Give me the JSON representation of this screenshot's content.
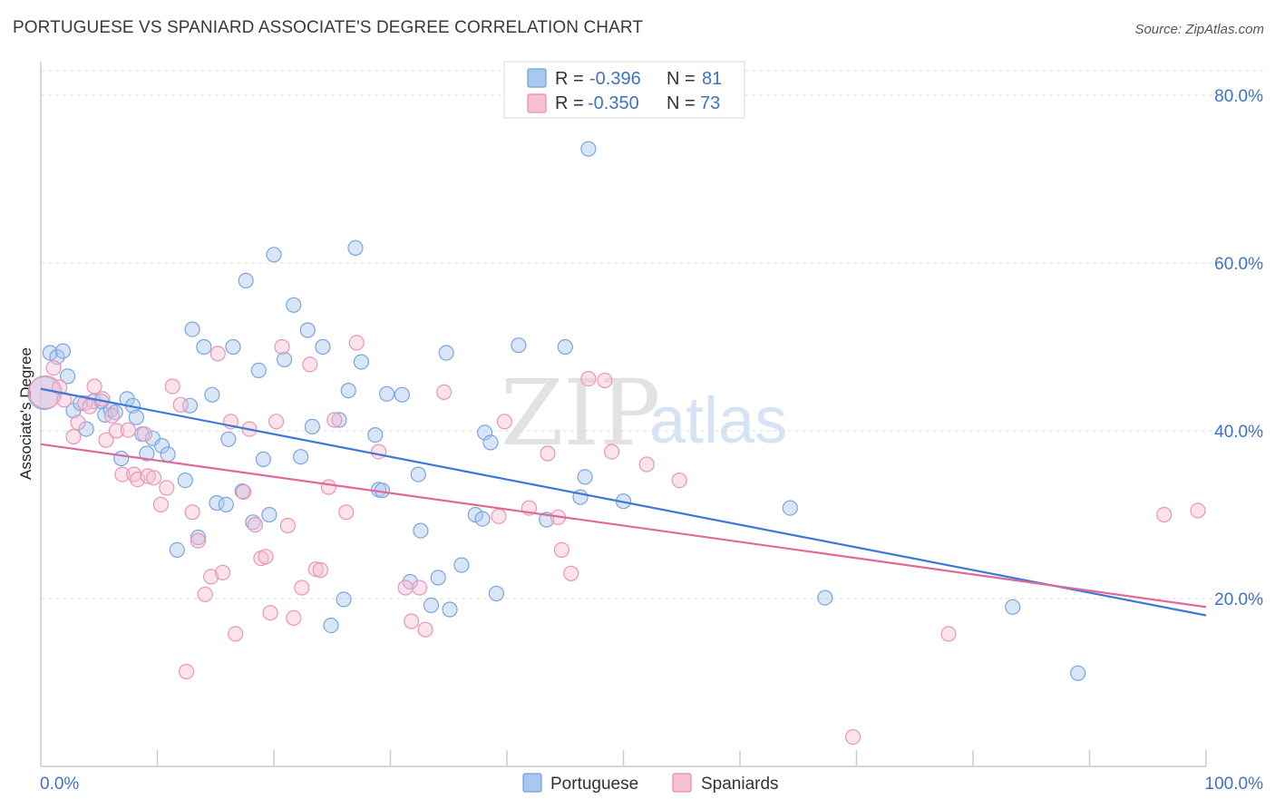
{
  "header": {
    "title": "PORTUGUESE VS SPANIARD ASSOCIATE'S DEGREE CORRELATION CHART",
    "source": "Source: ZipAtlas.com"
  },
  "watermark": {
    "zip": "ZIP",
    "atlas": "atlas"
  },
  "legend": {
    "r_label": "R =",
    "n_label": "N =",
    "entries": [
      {
        "name": "Portuguese",
        "r": "-0.396",
        "n": "81",
        "fill": "#a9c8f0",
        "stroke": "#6f9ee0"
      },
      {
        "name": "Spaniards",
        "r": "-0.350",
        "n": "73",
        "fill": "#f7bfd2",
        "stroke": "#e88aaa"
      }
    ]
  },
  "chart_data": {
    "type": "scatter",
    "title": "PORTUGUESE VS SPANIARD ASSOCIATE'S DEGREE CORRELATION CHART",
    "xlabel": "",
    "ylabel": "Associate's Degree",
    "xlim": [
      0,
      100
    ],
    "ylim": [
      0,
      84
    ],
    "x_tick_labels": [
      "0.0%",
      "100.0%"
    ],
    "y_ticks": [
      20,
      40,
      60,
      80
    ],
    "y_tick_labels": [
      "20.0%",
      "40.0%",
      "60.0%",
      "80.0%"
    ],
    "grid": "horizontal dashed",
    "legend_placement": "top-center",
    "colors": {
      "portuguese": "#3b78d8",
      "spaniards": "#e0699a"
    },
    "series": [
      {
        "name": "Portuguese",
        "trend": {
          "x": [
            0,
            100
          ],
          "y": [
            45.0,
            18.0
          ]
        },
        "points": [
          [
            0.3,
            44.5
          ],
          [
            0.8,
            49.3
          ],
          [
            1.4,
            48.8
          ],
          [
            1.9,
            49.5
          ],
          [
            2.3,
            46.5
          ],
          [
            2.8,
            42.4
          ],
          [
            3.4,
            43.3
          ],
          [
            3.9,
            40.2
          ],
          [
            4.5,
            43.5
          ],
          [
            5.2,
            43.5
          ],
          [
            5.5,
            41.9
          ],
          [
            6.0,
            42.5
          ],
          [
            6.4,
            42.2
          ],
          [
            6.9,
            36.7
          ],
          [
            7.4,
            43.8
          ],
          [
            7.9,
            43.0
          ],
          [
            8.2,
            41.6
          ],
          [
            8.7,
            39.6
          ],
          [
            9.1,
            37.3
          ],
          [
            9.6,
            39.1
          ],
          [
            10.4,
            38.2
          ],
          [
            10.9,
            37.2
          ],
          [
            11.7,
            25.8
          ],
          [
            12.4,
            34.1
          ],
          [
            12.8,
            43.0
          ],
          [
            13.0,
            52.1
          ],
          [
            13.5,
            27.3
          ],
          [
            14.0,
            50.0
          ],
          [
            14.7,
            44.3
          ],
          [
            15.1,
            31.4
          ],
          [
            15.9,
            31.2
          ],
          [
            16.1,
            39.0
          ],
          [
            16.5,
            50.0
          ],
          [
            17.3,
            32.8
          ],
          [
            17.6,
            57.9
          ],
          [
            18.2,
            29.1
          ],
          [
            18.7,
            47.2
          ],
          [
            19.1,
            36.6
          ],
          [
            19.6,
            30.0
          ],
          [
            20.0,
            61.0
          ],
          [
            20.9,
            48.5
          ],
          [
            21.7,
            55.0
          ],
          [
            22.3,
            36.9
          ],
          [
            22.9,
            52.0
          ],
          [
            23.3,
            40.5
          ],
          [
            24.2,
            50.0
          ],
          [
            24.9,
            16.8
          ],
          [
            25.6,
            41.3
          ],
          [
            26.0,
            19.9
          ],
          [
            26.4,
            44.8
          ],
          [
            27.0,
            61.8
          ],
          [
            27.5,
            48.2
          ],
          [
            28.7,
            39.5
          ],
          [
            29.0,
            33.0
          ],
          [
            29.3,
            32.9
          ],
          [
            29.7,
            44.4
          ],
          [
            31.0,
            44.3
          ],
          [
            31.7,
            22.0
          ],
          [
            32.4,
            34.8
          ],
          [
            32.6,
            28.1
          ],
          [
            33.5,
            19.2
          ],
          [
            34.1,
            22.5
          ],
          [
            34.8,
            49.3
          ],
          [
            35.1,
            18.7
          ],
          [
            36.1,
            24.0
          ],
          [
            37.3,
            30.0
          ],
          [
            37.9,
            29.5
          ],
          [
            38.1,
            39.8
          ],
          [
            38.6,
            38.6
          ],
          [
            39.1,
            20.6
          ],
          [
            41.0,
            50.2
          ],
          [
            43.4,
            29.4
          ],
          [
            45.0,
            50.0
          ],
          [
            46.3,
            32.1
          ],
          [
            46.7,
            34.5
          ],
          [
            47.0,
            73.6
          ],
          [
            50.0,
            31.6
          ],
          [
            64.3,
            30.8
          ],
          [
            67.3,
            20.1
          ],
          [
            83.4,
            19.0
          ],
          [
            89.0,
            11.1
          ]
        ]
      },
      {
        "name": "Spaniards",
        "trend": {
          "x": [
            0,
            100
          ],
          "y": [
            38.4,
            19.0
          ]
        },
        "points": [
          [
            0.4,
            44.6
          ],
          [
            1.1,
            47.5
          ],
          [
            1.6,
            45.2
          ],
          [
            2.0,
            43.7
          ],
          [
            2.8,
            39.3
          ],
          [
            3.2,
            41.0
          ],
          [
            3.8,
            43.3
          ],
          [
            4.2,
            42.9
          ],
          [
            4.6,
            45.3
          ],
          [
            5.3,
            43.8
          ],
          [
            5.6,
            38.9
          ],
          [
            6.1,
            41.8
          ],
          [
            6.5,
            40.0
          ],
          [
            7.0,
            34.8
          ],
          [
            7.5,
            40.1
          ],
          [
            8.0,
            34.8
          ],
          [
            8.3,
            34.2
          ],
          [
            8.9,
            39.6
          ],
          [
            9.2,
            34.6
          ],
          [
            9.7,
            34.4
          ],
          [
            10.3,
            31.2
          ],
          [
            10.8,
            33.2
          ],
          [
            11.3,
            45.3
          ],
          [
            12.0,
            43.1
          ],
          [
            12.5,
            11.3
          ],
          [
            13.0,
            30.3
          ],
          [
            13.5,
            26.9
          ],
          [
            14.1,
            20.5
          ],
          [
            14.6,
            22.6
          ],
          [
            15.2,
            49.2
          ],
          [
            15.6,
            23.1
          ],
          [
            16.3,
            41.1
          ],
          [
            16.7,
            15.8
          ],
          [
            17.4,
            32.7
          ],
          [
            17.9,
            40.2
          ],
          [
            18.4,
            28.8
          ],
          [
            18.9,
            24.8
          ],
          [
            19.3,
            25.0
          ],
          [
            19.7,
            18.3
          ],
          [
            20.2,
            41.1
          ],
          [
            20.7,
            50.0
          ],
          [
            21.2,
            28.7
          ],
          [
            21.7,
            17.7
          ],
          [
            22.4,
            21.3
          ],
          [
            23.1,
            47.9
          ],
          [
            23.6,
            23.5
          ],
          [
            24.0,
            23.4
          ],
          [
            24.7,
            33.3
          ],
          [
            25.2,
            41.3
          ],
          [
            26.2,
            30.3
          ],
          [
            27.1,
            50.5
          ],
          [
            29.0,
            37.5
          ],
          [
            31.3,
            21.3
          ],
          [
            31.8,
            17.3
          ],
          [
            32.5,
            21.3
          ],
          [
            33.0,
            16.3
          ],
          [
            34.6,
            44.6
          ],
          [
            39.3,
            29.8
          ],
          [
            39.8,
            41.1
          ],
          [
            41.9,
            30.8
          ],
          [
            43.5,
            37.3
          ],
          [
            44.4,
            29.7
          ],
          [
            44.7,
            25.8
          ],
          [
            45.5,
            23.0
          ],
          [
            47.0,
            46.2
          ],
          [
            48.4,
            46.0
          ],
          [
            49.0,
            37.5
          ],
          [
            52.0,
            36.0
          ],
          [
            54.8,
            34.1
          ],
          [
            69.7,
            3.5
          ],
          [
            77.9,
            15.8
          ],
          [
            96.4,
            30.0
          ],
          [
            99.3,
            30.5
          ]
        ]
      }
    ]
  }
}
